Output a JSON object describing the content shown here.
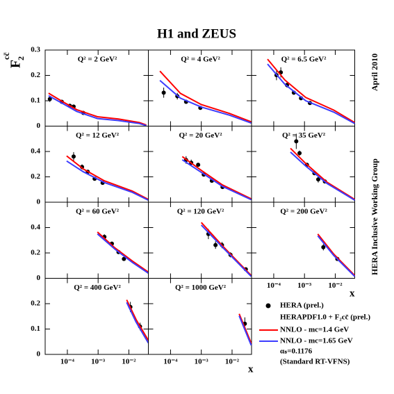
{
  "title": "H1 and ZEUS",
  "ylabel": "F",
  "ylabel_sub": "2",
  "ylabel_sup": "cc̄",
  "side_texts": [
    "April 2010",
    "HERA Inclusive Working Group"
  ],
  "xlabel": "x",
  "xlim": [
    1.9e-05,
    0.043
  ],
  "log_x": true,
  "xticks": [
    {
      "value": 0.0001,
      "label": "10⁻⁴"
    },
    {
      "value": 0.001,
      "label": "10⁻³"
    },
    {
      "value": 0.01,
      "label": "10⁻²"
    }
  ],
  "legend_heading": "HERAPDF1.0 + F₂cc̄ (prel.)",
  "legend_notes": [
    "αₛ=0.1176",
    "(Standard RT-VFNS)"
  ],
  "chart_data": [
    {
      "type": "scatter",
      "title": "Q² = 2 GeV²",
      "ylim": [
        0,
        0.3
      ],
      "yticks": [
        0,
        0.1,
        0.2,
        0.3
      ],
      "series": [
        {
          "name": "HERA (prel.)",
          "color": "#000000",
          "x": [
            2.7e-05,
            6.6e-05,
            0.00012,
            0.00016,
            0.00033
          ],
          "values": [
            0.107,
            0.096,
            0.08,
            0.077,
            0.052
          ],
          "errors": [
            0.012,
            0.008,
            0.007,
            0.007,
            0.004
          ]
        },
        {
          "name": "NNLO - mc=1.4 GeV",
          "color": "#ff0000",
          "x": [
            2.45e-05,
            6.9e-05,
            0.0002,
            0.00095,
            0.0046,
            0.022,
            0.037
          ],
          "values": [
            0.13,
            0.097,
            0.065,
            0.037,
            0.028,
            0.014,
            0.004
          ]
        },
        {
          "name": "NNLO - mc=1.65 GeV",
          "color": "#3c3cff",
          "x": [
            2.45e-05,
            6.9e-05,
            0.0002,
            0.00095,
            0.0046,
            0.022,
            0.037
          ],
          "values": [
            0.12,
            0.09,
            0.058,
            0.03,
            0.022,
            0.01,
            0.002
          ]
        }
      ]
    },
    {
      "type": "scatter",
      "title": "Q² = 4 GeV²",
      "ylim": [
        0,
        0.3
      ],
      "series": [
        {
          "color": "#000000",
          "x": [
            6e-05,
            0.000166,
            0.00032,
            0.00093
          ],
          "values": [
            0.132,
            0.118,
            0.096,
            0.072
          ],
          "errors": [
            0.02,
            0.013,
            0.008,
            0.006
          ]
        },
        {
          "color": "#ff0000",
          "x": [
            4.5e-05,
            0.00021,
            0.001,
            0.0083,
            0.042
          ],
          "values": [
            0.217,
            0.129,
            0.085,
            0.05,
            0.017
          ]
        },
        {
          "color": "#3c3cff",
          "x": [
            4.5e-05,
            0.00021,
            0.001,
            0.0083,
            0.042
          ],
          "values": [
            0.18,
            0.11,
            0.075,
            0.043,
            0.012
          ]
        }
      ]
    },
    {
      "type": "scatter",
      "title": "Q² = 6.5 GeV²",
      "ylim": [
        0,
        0.3
      ],
      "series": [
        {
          "color": "#000000",
          "x": [
            0.000123,
            0.00017,
            0.00027,
            0.00045,
            0.00077,
            0.0015
          ],
          "values": [
            0.201,
            0.212,
            0.162,
            0.132,
            0.11,
            0.091
          ],
          "errors": [
            0.02,
            0.02,
            0.01,
            0.008,
            0.006,
            0.006
          ]
        },
        {
          "color": "#ff0000",
          "x": [
            6.3e-05,
            0.00023,
            0.0011,
            0.009,
            0.043
          ],
          "values": [
            0.264,
            0.182,
            0.113,
            0.063,
            0.014
          ]
        },
        {
          "color": "#3c3cff",
          "x": [
            6.3e-05,
            0.00023,
            0.0011,
            0.009,
            0.043
          ],
          "values": [
            0.245,
            0.165,
            0.1,
            0.055,
            0.01
          ]
        }
      ]
    },
    {
      "type": "scatter",
      "title": "Q² = 12 GeV²",
      "ylim": [
        0,
        0.6
      ],
      "yticks": [
        0,
        0.2,
        0.4
      ],
      "series": [
        {
          "color": "#000000",
          "x": [
            0.00016,
            0.0003,
            0.00046,
            0.00077,
            0.0014
          ],
          "values": [
            0.36,
            0.278,
            0.24,
            0.185,
            0.153
          ],
          "errors": [
            0.035,
            0.02,
            0.015,
            0.01,
            0.008
          ]
        },
        {
          "color": "#ff0000",
          "x": [
            9.5e-05,
            0.00033,
            0.0016,
            0.013,
            0.043
          ],
          "values": [
            0.365,
            0.262,
            0.169,
            0.087,
            0.022
          ]
        },
        {
          "color": "#3c3cff",
          "x": [
            9.5e-05,
            0.00033,
            0.0016,
            0.013,
            0.043
          ],
          "values": [
            0.325,
            0.24,
            0.155,
            0.078,
            0.016
          ]
        }
      ]
    },
    {
      "type": "scatter",
      "title": "Q² = 20 GeV²",
      "ylim": [
        0,
        0.6
      ],
      "series": [
        {
          "color": "#000000",
          "x": [
            0.00032,
            0.00047,
            0.00079,
            0.0012,
            0.0022,
            0.0049
          ],
          "values": [
            0.333,
            0.311,
            0.295,
            0.218,
            0.169,
            0.12
          ],
          "errors": [
            0.03,
            0.025,
            0.015,
            0.01,
            0.008,
            0.008
          ]
        },
        {
          "color": "#ff0000",
          "x": [
            0.00024,
            0.001,
            0.0049,
            0.042
          ],
          "values": [
            0.36,
            0.251,
            0.136,
            0.027
          ]
        },
        {
          "color": "#3c3cff",
          "x": [
            0.00024,
            0.001,
            0.0049,
            0.042
          ],
          "values": [
            0.335,
            0.235,
            0.125,
            0.02
          ]
        }
      ]
    },
    {
      "type": "scatter",
      "title": "Q² = 35 GeV²",
      "ylim": [
        0,
        0.6
      ],
      "series": [
        {
          "color": "#000000",
          "x": [
            0.00054,
            0.00069,
            0.0012,
            0.0021,
            0.0028,
            0.0046
          ],
          "values": [
            0.48,
            0.387,
            0.295,
            0.229,
            0.18,
            0.164
          ],
          "errors": [
            0.06,
            0.02,
            0.012,
            0.015,
            0.025,
            0.01
          ]
        },
        {
          "color": "#ff0000",
          "x": [
            0.00035,
            0.0011,
            0.0054,
            0.043
          ],
          "values": [
            0.425,
            0.305,
            0.158,
            0.022
          ]
        },
        {
          "color": "#3c3cff",
          "x": [
            0.00035,
            0.0011,
            0.0054,
            0.043
          ],
          "values": [
            0.395,
            0.285,
            0.148,
            0.016
          ]
        }
      ]
    },
    {
      "type": "scatter",
      "title": "Q² = 60 GeV²",
      "ylim": [
        0,
        0.6
      ],
      "yticks": [
        0,
        0.2,
        0.4
      ],
      "series": [
        {
          "color": "#000000",
          "x": [
            0.0016,
            0.0028,
            0.0046,
            0.0069
          ],
          "values": [
            0.327,
            0.273,
            0.207,
            0.153
          ],
          "errors": [
            0.02,
            0.015,
            0.01,
            0.01
          ]
        },
        {
          "color": "#ff0000",
          "x": [
            0.00095,
            0.0035,
            0.013,
            0.043
          ],
          "values": [
            0.365,
            0.24,
            0.136,
            0.049
          ]
        },
        {
          "color": "#3c3cff",
          "x": [
            0.00095,
            0.0035,
            0.013,
            0.043
          ],
          "values": [
            0.35,
            0.23,
            0.125,
            0.04
          ]
        }
      ]
    },
    {
      "type": "scatter",
      "title": "Q² = 120 GeV²",
      "ylim": [
        0,
        0.6
      ],
      "series": [
        {
          "color": "#000000",
          "x": [
            0.0017,
            0.0029,
            0.0047,
            0.0089,
            0.028
          ],
          "values": [
            0.349,
            0.262,
            0.262,
            0.185,
            0.071
          ],
          "errors": [
            0.04,
            0.03,
            0.025,
            0.02,
            0.01
          ]
        },
        {
          "color": "#ff0000",
          "x": [
            0.001,
            0.0049,
            0.042
          ],
          "values": [
            0.44,
            0.256,
            0.022
          ]
        },
        {
          "color": "#3c3cff",
          "x": [
            0.001,
            0.0049,
            0.042
          ],
          "values": [
            0.42,
            0.245,
            0.015
          ]
        }
      ]
    },
    {
      "type": "scatter",
      "title": "Q² = 200 GeV²",
      "ylim": [
        0,
        0.6
      ],
      "series": [
        {
          "color": "#000000",
          "x": [
            0.0041,
            0.0117
          ],
          "values": [
            0.245,
            0.153
          ],
          "errors": [
            0.025,
            0.012
          ]
        },
        {
          "color": "#ff0000",
          "x": [
            0.0027,
            0.0089,
            0.043
          ],
          "values": [
            0.349,
            0.191,
            0.022
          ]
        },
        {
          "color": "#3c3cff",
          "x": [
            0.0027,
            0.0089,
            0.043
          ],
          "values": [
            0.335,
            0.18,
            0.015
          ]
        }
      ]
    },
    {
      "type": "scatter",
      "title": "Q² = 400 GeV²",
      "ylim": [
        0,
        0.3
      ],
      "yticks": [
        0,
        0.1,
        0.2
      ],
      "series": [
        {
          "color": "#000000",
          "x": [
            0.0112,
            0.023
          ],
          "values": [
            0.187,
            0.11
          ],
          "errors": [
            0.02,
            0.015
          ]
        },
        {
          "color": "#ff0000",
          "x": [
            0.0085,
            0.017,
            0.043
          ],
          "values": [
            0.215,
            0.138,
            0.055
          ]
        },
        {
          "color": "#3c3cff",
          "x": [
            0.0085,
            0.017,
            0.043
          ],
          "values": [
            0.205,
            0.128,
            0.045
          ]
        }
      ]
    },
    {
      "type": "scatter",
      "title": "Q² = 1000 GeV²",
      "ylim": [
        0,
        0.3
      ],
      "series": [
        {
          "color": "#000000",
          "x": [
            0.026
          ],
          "values": [
            0.121
          ],
          "errors": [
            0.025
          ]
        },
        {
          "color": "#ff0000",
          "x": [
            0.017,
            0.042
          ],
          "values": [
            0.16,
            0.044
          ]
        },
        {
          "color": "#3c3cff",
          "x": [
            0.017,
            0.042
          ],
          "values": [
            0.152,
            0.036
          ]
        }
      ]
    }
  ]
}
